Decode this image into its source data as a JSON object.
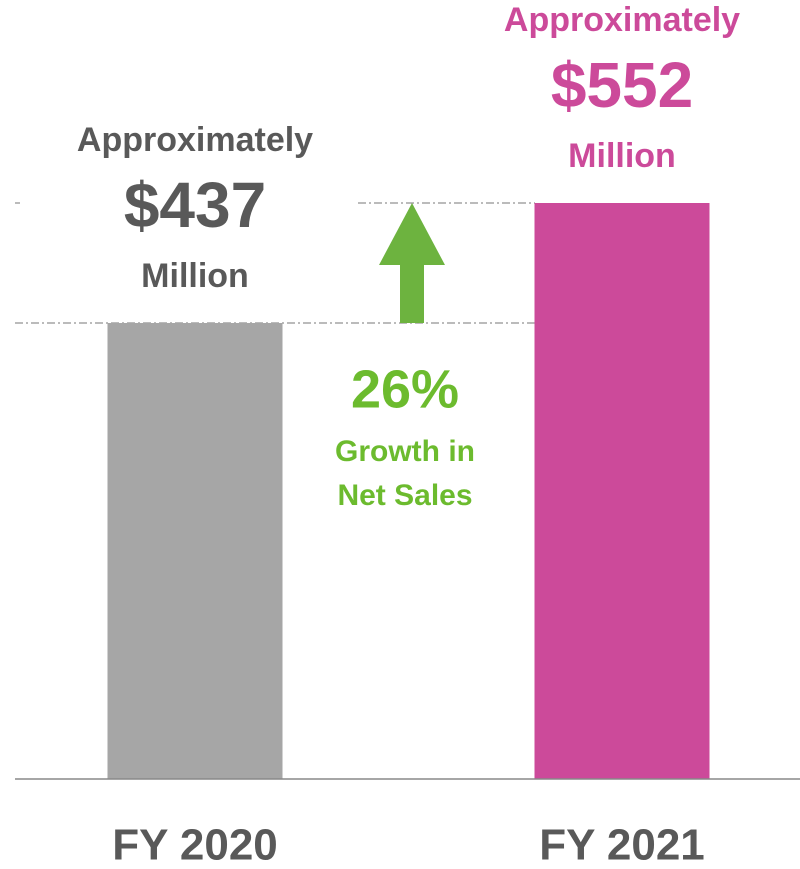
{
  "chart_data": {
    "type": "bar",
    "categories": [
      "FY 2020",
      "FY 2021"
    ],
    "values": [
      437,
      552
    ],
    "value_labels": [
      "$437",
      "$552"
    ],
    "value_label_prefix": "Approximately",
    "value_label_suffix": "Million",
    "colors": [
      "#a6a6a6",
      "#cc4a9a"
    ],
    "label_colors": [
      "#595959",
      "#cc4a9a"
    ],
    "annotation": {
      "value": 26,
      "label": "26%",
      "text": [
        "Growth in",
        "Net Sales"
      ],
      "color": "#6cbb2e"
    }
  }
}
